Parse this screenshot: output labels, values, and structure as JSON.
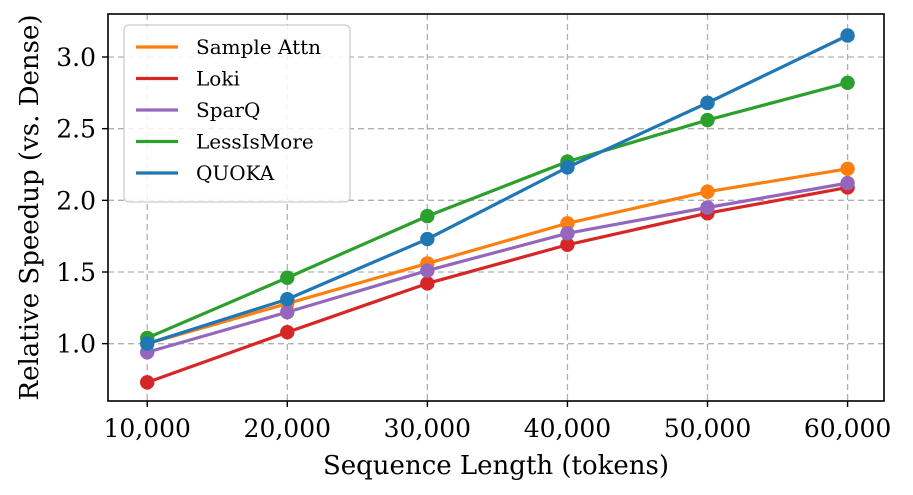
{
  "chart_data": {
    "type": "line",
    "title": "",
    "xlabel": "Sequence Length (tokens)",
    "ylabel": "Relative Speedup (vs. Dense)",
    "x": [
      10000,
      20000,
      30000,
      40000,
      50000,
      60000
    ],
    "x_tick_labels": [
      "10,000",
      "20,000",
      "30,000",
      "40,000",
      "50,000",
      "60,000"
    ],
    "y_ticks": [
      1.0,
      1.5,
      2.0,
      2.5,
      3.0
    ],
    "y_tick_labels": [
      "1.0",
      "1.5",
      "2.0",
      "2.5",
      "3.0"
    ],
    "xlim": [
      7200,
      62600
    ],
    "ylim": [
      0.6,
      3.3
    ],
    "grid": true,
    "legend_position": "upper-left",
    "series": [
      {
        "name": "Sample Attn",
        "color": "#ff7f0e",
        "values": [
          1.0,
          1.28,
          1.56,
          1.84,
          2.06,
          2.22
        ]
      },
      {
        "name": "Loki",
        "color": "#d62728",
        "values": [
          0.73,
          1.08,
          1.42,
          1.69,
          1.91,
          2.09
        ]
      },
      {
        "name": "SparQ",
        "color": "#9467bd",
        "values": [
          0.94,
          1.22,
          1.51,
          1.77,
          1.95,
          2.12
        ]
      },
      {
        "name": "LessIsMore",
        "color": "#2ca02c",
        "values": [
          1.04,
          1.46,
          1.89,
          2.27,
          2.56,
          2.82
        ]
      },
      {
        "name": "QUOKA",
        "color": "#1f77b4",
        "values": [
          1.0,
          1.31,
          1.73,
          2.23,
          2.68,
          3.15
        ]
      }
    ]
  }
}
